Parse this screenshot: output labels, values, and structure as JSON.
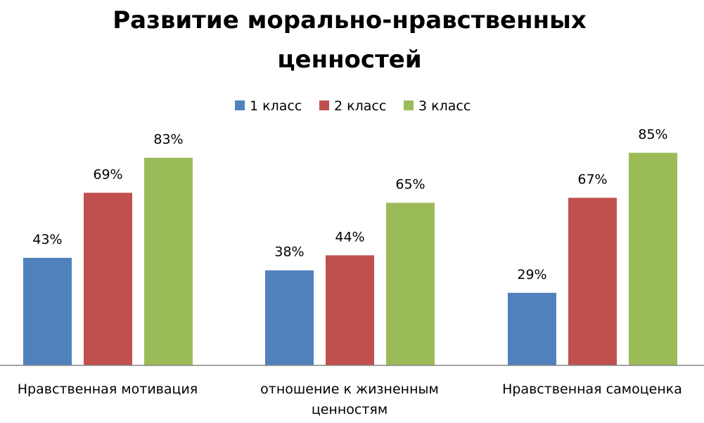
{
  "chart_data": {
    "type": "bar",
    "title_lines": [
      "Развитие морально-нравственных",
      "ценностей"
    ],
    "categories": [
      [
        "Нравственная мотивация"
      ],
      [
        "отношение к жизненным",
        "ценностям"
      ],
      [
        "Нравственная самоценка"
      ]
    ],
    "series": [
      {
        "name": "1 класс",
        "color": "#4F81BD",
        "values": [
          43,
          38,
          29
        ],
        "labels": [
          "43%",
          "38%",
          "29%"
        ]
      },
      {
        "name": "2 класс",
        "color": "#C0504D",
        "values": [
          69,
          44,
          67
        ],
        "labels": [
          "69%",
          "44%",
          "67%"
        ]
      },
      {
        "name": "3 класс",
        "color": "#9BBB59",
        "values": [
          83,
          65,
          85
        ],
        "labels": [
          "83%",
          "65%",
          "85%"
        ]
      }
    ],
    "ylim": [
      0,
      100
    ],
    "grid": false,
    "legend_position": "top"
  }
}
